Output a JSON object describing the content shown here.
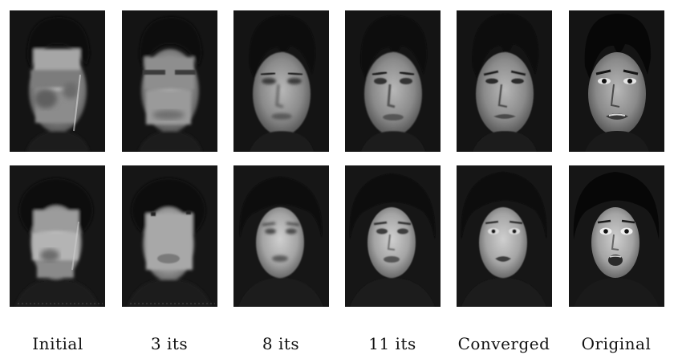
{
  "figure": {
    "captions": [
      "Initial",
      "3 its",
      "8 its",
      "11 its",
      "Converged",
      "Original"
    ]
  }
}
